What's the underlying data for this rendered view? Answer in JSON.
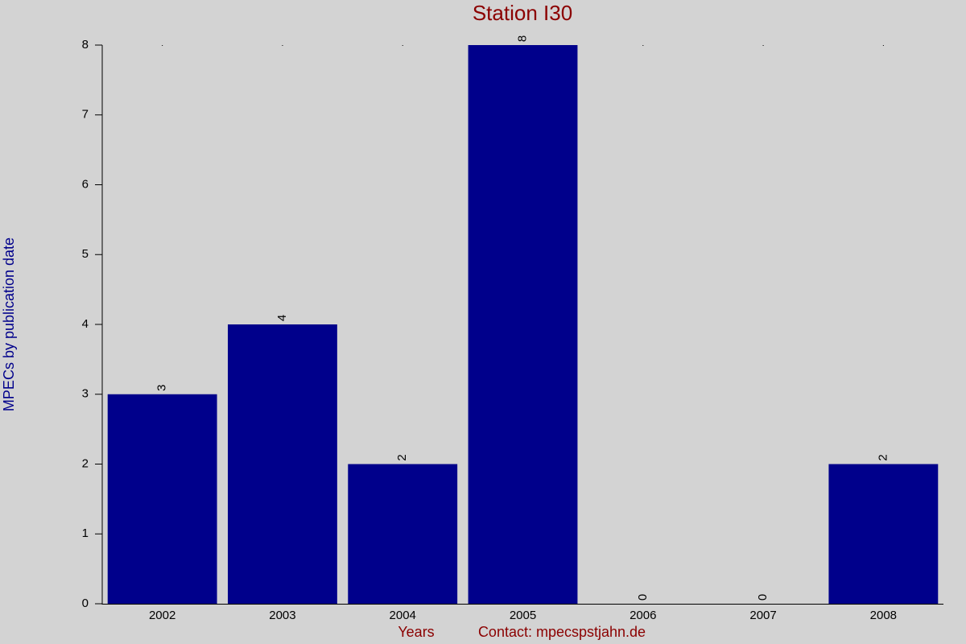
{
  "chart_data": {
    "type": "bar",
    "title": "Station I30",
    "x_label": "Years",
    "y_label": "MPECs by publication date",
    "annotation": "Contact: mpecspstjahn.de",
    "categories": [
      "2002",
      "2003",
      "2004",
      "2005",
      "2006",
      "2007",
      "2008"
    ],
    "values": [
      3,
      4,
      2,
      8,
      0,
      0,
      2
    ],
    "color": "#00008b",
    "ylim": [
      0,
      8
    ],
    "yticks": [
      0,
      1,
      2,
      3,
      4,
      5,
      6,
      7,
      8
    ],
    "grid": false
  }
}
